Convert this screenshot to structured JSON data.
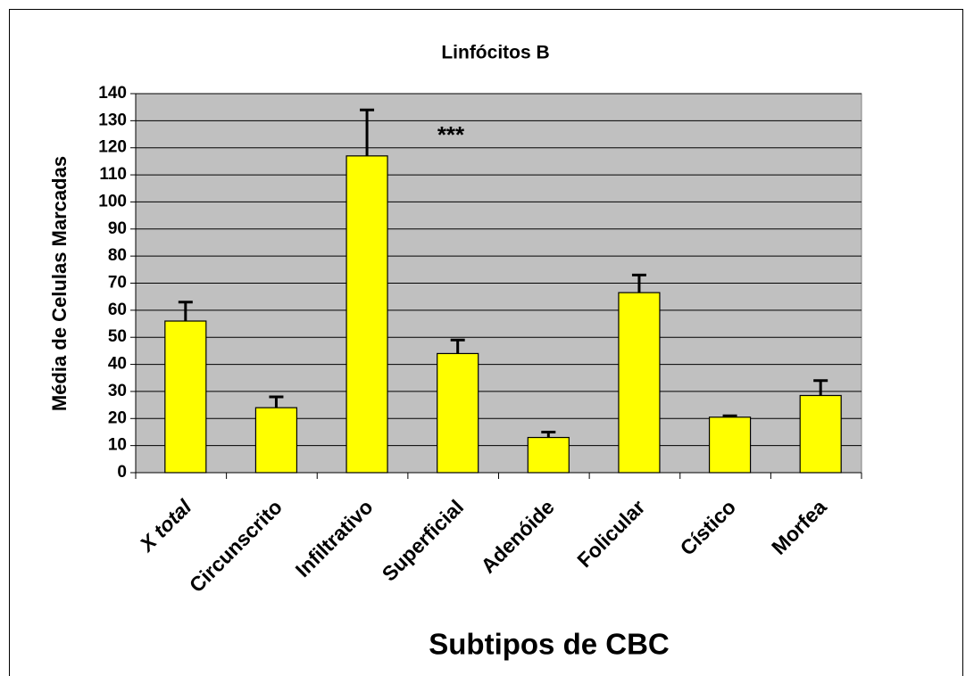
{
  "chart_data": {
    "type": "bar",
    "title": "Linfócitos B",
    "x_label": "Subtipos de CBC",
    "y_label": "Média de Celulas Marcadas",
    "categories": [
      "X total",
      "Circunscrito",
      "Infiltrativo",
      "Superficial",
      "Adenóide",
      "Folicular",
      "Cístico",
      "Morfea"
    ],
    "values": [
      56,
      24,
      117,
      44,
      13,
      66.5,
      20.5,
      28.5
    ],
    "errors": [
      7,
      4,
      17,
      5,
      2,
      6.5,
      0.5,
      5.5
    ],
    "color": "#ffff00",
    "annotation": "***",
    "ylim": [
      0,
      140
    ],
    "yticks": [
      0,
      10,
      20,
      30,
      40,
      50,
      60,
      70,
      80,
      90,
      100,
      110,
      120,
      130,
      140
    ],
    "grid": true
  }
}
